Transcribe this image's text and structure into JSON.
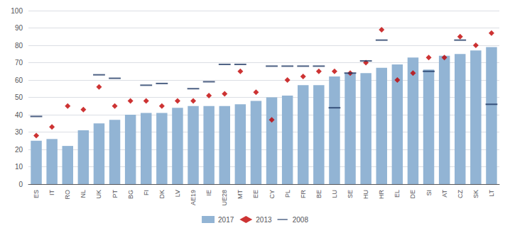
{
  "chart_data": {
    "type": "bar",
    "categories": [
      "ES",
      "IT",
      "RO",
      "NL",
      "UK",
      "PT",
      "BG",
      "FI",
      "DK",
      "LV",
      "AE19",
      "IE",
      "UE28",
      "MT",
      "EE",
      "CY",
      "PL",
      "FR",
      "BE",
      "LU",
      "SE",
      "HU",
      "HR",
      "EL",
      "DE",
      "SI",
      "AT",
      "CZ",
      "SK",
      "LT"
    ],
    "series": [
      {
        "name": "2017",
        "type": "bar",
        "color": "#92b4d4",
        "values": [
          25,
          26,
          22,
          31,
          35,
          37,
          40,
          41,
          41,
          44,
          45,
          45,
          45,
          46,
          48,
          50,
          51,
          57,
          57,
          62,
          64,
          64,
          67,
          69,
          73,
          66,
          74,
          75,
          77,
          79
        ]
      },
      {
        "name": "2013",
        "type": "scatter",
        "marker": "diamond",
        "color": "#c00000",
        "values": [
          28,
          33,
          45,
          43,
          56,
          45,
          48,
          48,
          45,
          48,
          48,
          51,
          52,
          65,
          53,
          37,
          60,
          62,
          65,
          65,
          64,
          70,
          89,
          60,
          64,
          73,
          73,
          85,
          80,
          87
        ]
      },
      {
        "name": "2008",
        "type": "scatter",
        "marker": "hline",
        "color": "#1f3864",
        "values": [
          39,
          null,
          null,
          null,
          63,
          61,
          null,
          57,
          58,
          null,
          55,
          59,
          69,
          69,
          null,
          68,
          68,
          68,
          68,
          44,
          64,
          71,
          83,
          null,
          null,
          65,
          null,
          83,
          null,
          46
        ]
      }
    ],
    "ylim": [
      0,
      100
    ],
    "yticks": [
      0,
      10,
      20,
      30,
      40,
      50,
      60,
      70,
      80,
      90,
      100
    ],
    "grid": true,
    "legend": "bottom"
  }
}
